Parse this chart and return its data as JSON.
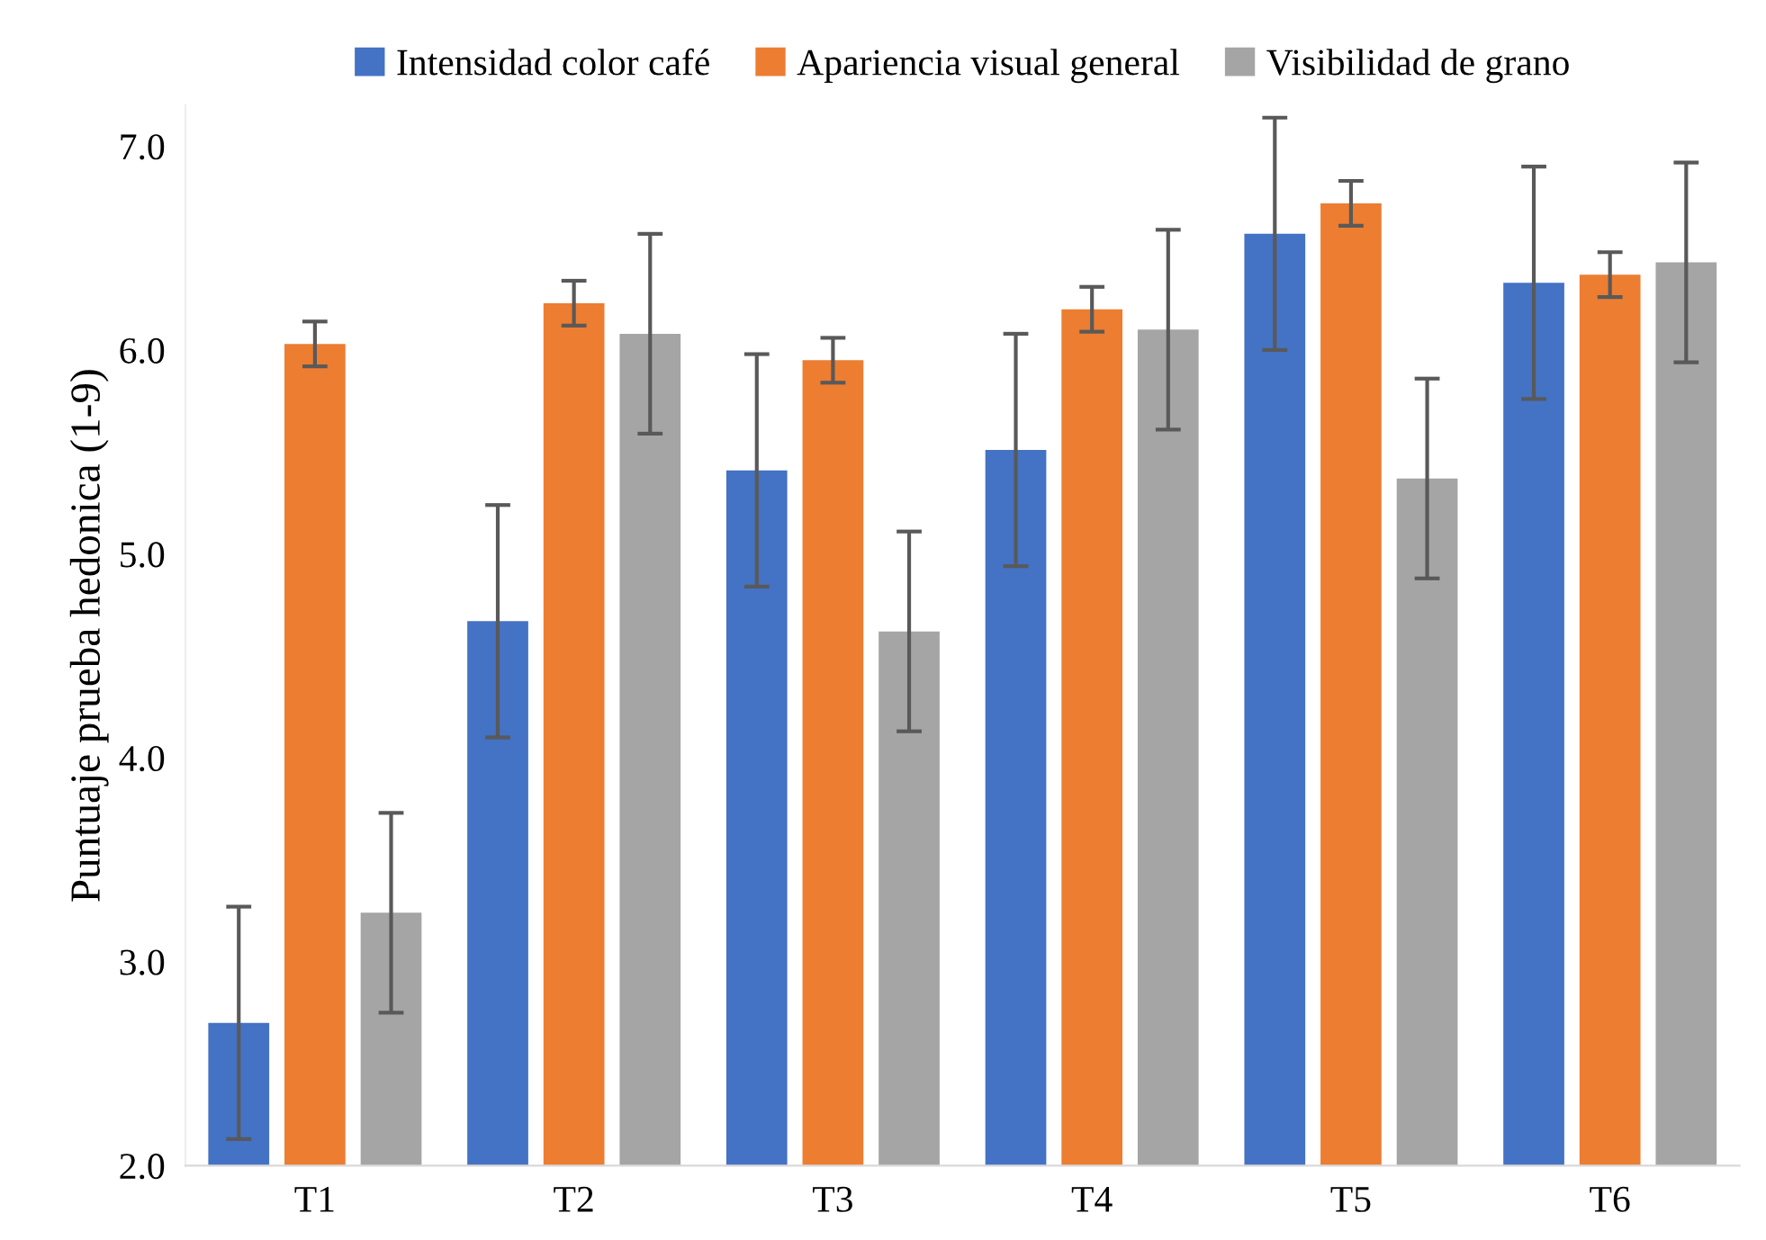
{
  "chart_data": {
    "type": "bar",
    "ylabel": "Puntuaje prueba hedonica (1-9)",
    "categories": [
      "T1",
      "T2",
      "T3",
      "T4",
      "T5",
      "T6"
    ],
    "series": [
      {
        "name": "Intensidad color café",
        "color": "#4472c4",
        "values": [
          2.7,
          4.67,
          5.41,
          5.51,
          6.57,
          6.33
        ],
        "errors": [
          0.57,
          0.57,
          0.57,
          0.57,
          0.57,
          0.57
        ]
      },
      {
        "name": "Apariencia visual general",
        "color": "#ed7d31",
        "values": [
          6.03,
          6.23,
          5.95,
          6.2,
          6.72,
          6.37
        ],
        "errors": [
          0.11,
          0.11,
          0.11,
          0.11,
          0.11,
          0.11
        ]
      },
      {
        "name": "Visibilidad de grano",
        "color": "#a5a5a5",
        "values": [
          3.24,
          6.08,
          4.62,
          6.1,
          5.37,
          6.43
        ],
        "errors": [
          0.49,
          0.49,
          0.49,
          0.49,
          0.49,
          0.49
        ]
      }
    ],
    "ylim": [
      2.0,
      7.2
    ],
    "yticks": [
      {
        "value": 2,
        "label": "2.0"
      },
      {
        "value": 3,
        "label": "3.0"
      },
      {
        "value": 4,
        "label": "4.0"
      },
      {
        "value": 5,
        "label": "5.0"
      },
      {
        "value": 6,
        "label": "6.0"
      },
      {
        "value": 7,
        "label": "7.0"
      }
    ],
    "grid": false,
    "legend": "top"
  }
}
